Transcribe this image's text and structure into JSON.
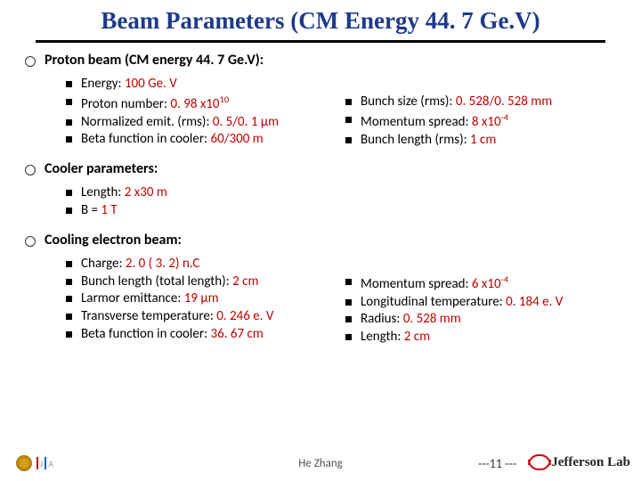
{
  "title": "Beam Parameters (CM Energy 44. 7 Ge.V)",
  "sections": {
    "proton": {
      "heading": "Proton beam  (CM energy 44. 7 Ge.V):",
      "left": [
        {
          "label": "Energy: ",
          "val": "100 Ge. V"
        },
        {
          "label": "Proton number: ",
          "val": "0. 98 x10",
          "sup": "10"
        },
        {
          "label": "Normalized emit. (rms):  ",
          "val": "0. 5/0. 1 μm"
        },
        {
          "label": "Beta function in cooler: ",
          "val": "60/300 m"
        }
      ],
      "right": [
        {
          "label": "Bunch size (rms): ",
          "val": "0. 528/0. 528 mm"
        },
        {
          "label": "Momentum spread: ",
          "val": "8 x10",
          "sup": "-4"
        },
        {
          "label": "Bunch length (rms): ",
          "val": "1 cm"
        }
      ]
    },
    "cooler": {
      "heading": "Cooler parameters:",
      "items": [
        {
          "label": "Length: ",
          "val": "2 x30 m"
        },
        {
          "label": "B = ",
          "val": "1 T"
        }
      ]
    },
    "electron": {
      "heading": "Cooling electron beam:",
      "left": [
        {
          "label": "Charge: ",
          "val": "2. 0 ( 3. 2) n.C"
        },
        {
          "label": "Bunch length (total length): ",
          "val": "2 cm"
        },
        {
          "label": "Larmor emittance: ",
          "val": "19 μm"
        },
        {
          "label": "Transverse temperature: ",
          "val": "0. 246 e. V"
        },
        {
          "label": "Beta function in cooler: ",
          "val": "36. 67 cm"
        }
      ],
      "right": [
        {
          "label": "Momentum spread: ",
          "val": "6 x10",
          "sup": "-4"
        },
        {
          "label": "Longitudinal temperature: ",
          "val": "0. 184 e. V"
        },
        {
          "label": "Radius: ",
          "val": "0. 528 mm"
        },
        {
          "label": "Length: ",
          "val": "2 cm"
        }
      ]
    }
  },
  "footer": {
    "author": "He Zhang",
    "page": "---11 ---",
    "lab": "Jefferson Lab"
  }
}
